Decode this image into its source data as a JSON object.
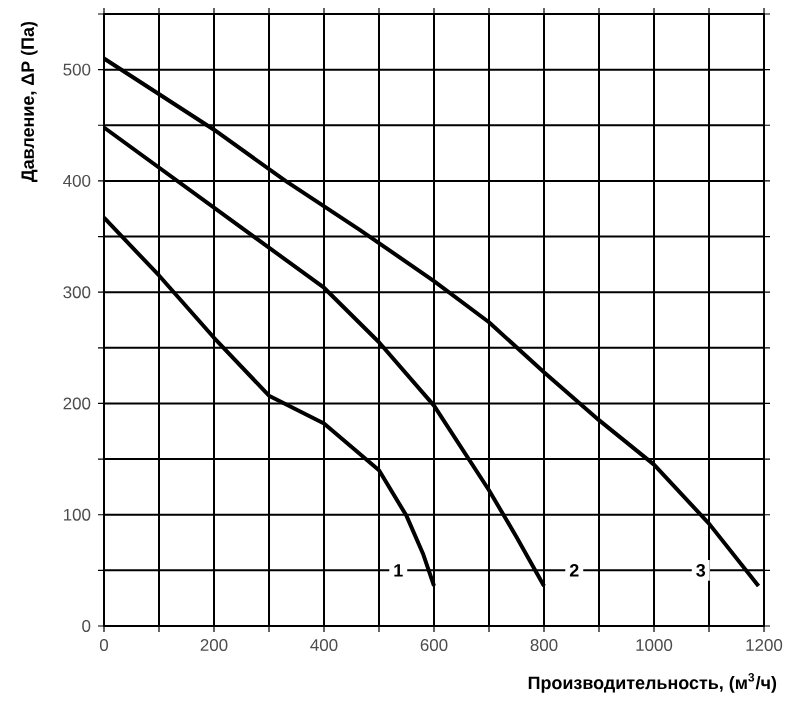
{
  "chart_data": {
    "type": "line",
    "xlabel": "Производительность, (м$^{3}$/ч)",
    "ylabel": "Давление, ΔР (Па)",
    "xlim": [
      0,
      1200
    ],
    "ylim": [
      0,
      550
    ],
    "xticks": [
      0,
      {
        "value": 100,
        "label": null
      },
      200,
      {
        "value": 300,
        "label": null
      },
      400,
      {
        "value": 500,
        "label": null
      },
      600,
      {
        "value": 700,
        "label": null
      },
      800,
      {
        "value": 900,
        "label": null
      },
      1000,
      {
        "value": 1100,
        "label": null
      },
      1200
    ],
    "yticks": [
      0,
      {
        "value": 50,
        "label": null
      },
      100,
      {
        "value": 150,
        "label": null
      },
      200,
      {
        "value": 250,
        "label": null
      },
      300,
      {
        "value": 350,
        "label": null
      },
      400,
      {
        "value": 450,
        "label": null
      },
      500,
      {
        "value": 550,
        "label": null
      }
    ],
    "grid": true,
    "marker": "none",
    "line_style": "solid",
    "series": [
      {
        "color": "#000000",
        "x": [
          0,
          100,
          200,
          300,
          400,
          500,
          550,
          580,
          600
        ],
        "values": [
          367,
          315,
          259,
          207,
          182,
          140,
          99,
          65,
          36
        ]
      },
      {
        "color": "#000000",
        "x": [
          0,
          200,
          400,
          500,
          600,
          700,
          750,
          800
        ],
        "values": [
          448,
          376,
          304,
          255,
          198,
          122,
          80,
          36
        ]
      },
      {
        "color": "#000000",
        "x": [
          0,
          200,
          330,
          465,
          600,
          700,
          800,
          900,
          1000,
          1100,
          1190
        ],
        "values": [
          510,
          446,
          400,
          356,
          310,
          273,
          228,
          185,
          145,
          92,
          36
        ]
      }
    ],
    "annotations": [
      {
        "text": "1",
        "x": 535,
        "y": 50
      },
      {
        "text": "2",
        "x": 855,
        "y": 50
      },
      {
        "text": "3",
        "x": 1085,
        "y": 50
      }
    ]
  }
}
